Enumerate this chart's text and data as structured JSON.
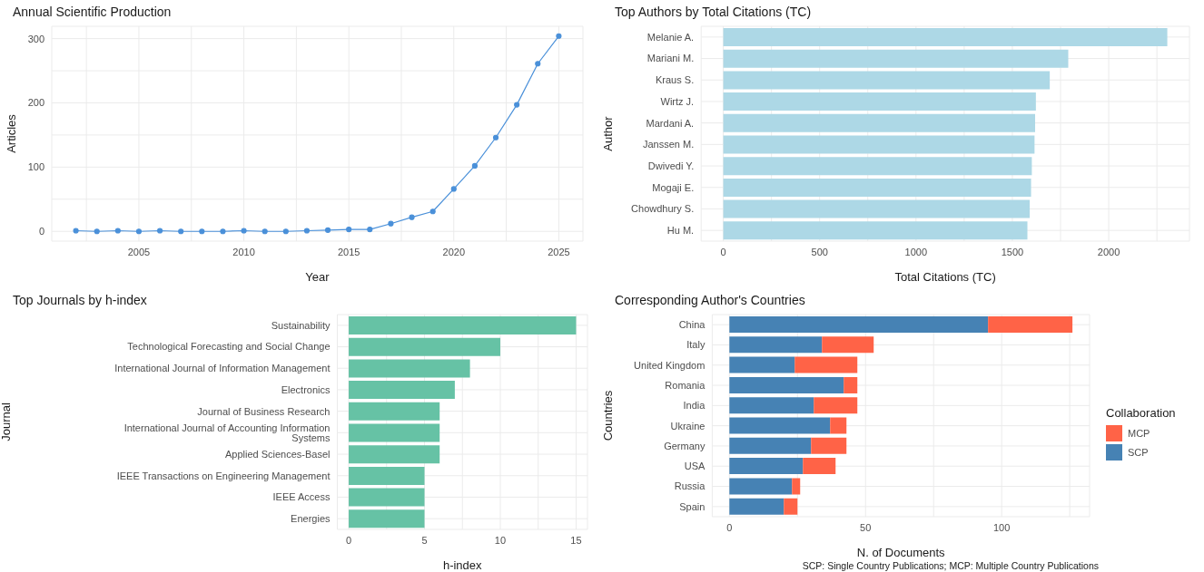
{
  "chart_data": [
    {
      "type": "line",
      "title": "Annual Scientific Production",
      "xlabel": "Year",
      "ylabel": "Articles",
      "x": [
        2002,
        2003,
        2004,
        2005,
        2006,
        2007,
        2008,
        2009,
        2010,
        2011,
        2012,
        2013,
        2014,
        2015,
        2016,
        2017,
        2018,
        2019,
        2020,
        2021,
        2022,
        2023,
        2024,
        2025
      ],
      "series": [
        {
          "color": "#4a90d9",
          "values": [
            1,
            0,
            1,
            0,
            1,
            0,
            0,
            0,
            1,
            0,
            0,
            1,
            2,
            3,
            3,
            12,
            22,
            31,
            66,
            102,
            146,
            197,
            261,
            304
          ]
        }
      ],
      "xlim": [
        2000.85,
        2026.15
      ],
      "xticks": [
        {
          "value": 2002.5,
          "label": null
        },
        2005,
        {
          "value": 2007.5,
          "label": null
        },
        2010,
        {
          "value": 2012.5,
          "label": null
        },
        2015,
        {
          "value": 2017.5,
          "label": null
        },
        2020,
        {
          "value": 2022.5,
          "label": null
        },
        2025
      ],
      "ylim": [
        -15.2,
        319.2
      ],
      "yticks": [
        0,
        {
          "value": 50,
          "label": null
        },
        100,
        {
          "value": 150,
          "label": null
        },
        200,
        {
          "value": 250,
          "label": null
        },
        300
      ],
      "grid": true,
      "marker": "circle",
      "line_style": "solid",
      "legend": false
    },
    {
      "type": "bar",
      "orientation": "horizontal",
      "title": "Top Authors by Total Citations (TC)",
      "xlabel": "Total Citations (TC)",
      "ylabel": "Author",
      "categories": [
        "Melanie A.",
        "Mariani M.",
        "Kraus S.",
        "Wirtz J.",
        "Mardani A.",
        "Janssen M.",
        "Dwivedi Y.",
        "Mogaji E.",
        "Chowdhury S.",
        "Hu M."
      ],
      "series": [
        {
          "color": "#add8e6",
          "values": [
            2304,
            1790,
            1694,
            1622,
            1618,
            1615,
            1601,
            1597,
            1590,
            1578
          ]
        }
      ],
      "xlim": [
        -115,
        2419
      ],
      "xticks": [
        0,
        {
          "value": 250,
          "label": null
        },
        500,
        {
          "value": 750,
          "label": null
        },
        1000,
        {
          "value": 1250,
          "label": null
        },
        1500,
        {
          "value": 1750,
          "label": null
        },
        2000,
        {
          "value": 2250,
          "label": null
        }
      ],
      "grid": true,
      "legend": false
    },
    {
      "type": "bar",
      "orientation": "horizontal",
      "title": "Top Journals by h-index",
      "xlabel": "h-index",
      "ylabel": "Journal",
      "categories": [
        "Sustainability",
        "Technological Forecasting and Social Change",
        "International Journal of Information Management",
        "Electronics",
        "Journal of Business Research",
        "International Journal of Accounting Information Systems",
        "Applied Sciences-Basel",
        "IEEE Transactions on Engineering Management",
        "IEEE Access",
        "Energies"
      ],
      "series": [
        {
          "color": "#66c2a5",
          "values": [
            15,
            10,
            8,
            7,
            6,
            6,
            6,
            5,
            5,
            5
          ]
        }
      ],
      "xlim": [
        -0.75,
        15.75
      ],
      "xticks": [
        0,
        {
          "value": 2.5,
          "label": null
        },
        5,
        {
          "value": 7.5,
          "label": null
        },
        10,
        {
          "value": 12.5,
          "label": null
        },
        15
      ],
      "grid": true,
      "legend": false
    },
    {
      "type": "bar",
      "orientation": "horizontal",
      "stacked": true,
      "title": "Corresponding Author's Countries",
      "xlabel": "N. of Documents",
      "ylabel": "Countries",
      "legend_title": "Collaboration",
      "categories": [
        "China",
        "Italy",
        "United Kingdom",
        "Romania",
        "India",
        "Ukraine",
        "Germany",
        "USA",
        "Russia",
        "Spain"
      ],
      "series": [
        {
          "name": "SCP",
          "color": "#4682b4",
          "values": [
            95,
            34,
            24,
            42,
            31,
            37,
            30,
            27,
            23,
            20
          ]
        },
        {
          "name": "MCP",
          "color": "#ff6347",
          "values": [
            31,
            19,
            23,
            5,
            16,
            6,
            13,
            12,
            3,
            5
          ]
        }
      ],
      "xlim": [
        -6.3,
        132.3
      ],
      "xticks": [
        0,
        {
          "value": 25,
          "label": null
        },
        50,
        {
          "value": 75,
          "label": null
        },
        100,
        {
          "value": 125,
          "label": null
        }
      ],
      "grid": true,
      "legend": "right",
      "annotations": [
        "SCP: Single Country Publications; MCP: Multiple Country Publications"
      ]
    }
  ]
}
